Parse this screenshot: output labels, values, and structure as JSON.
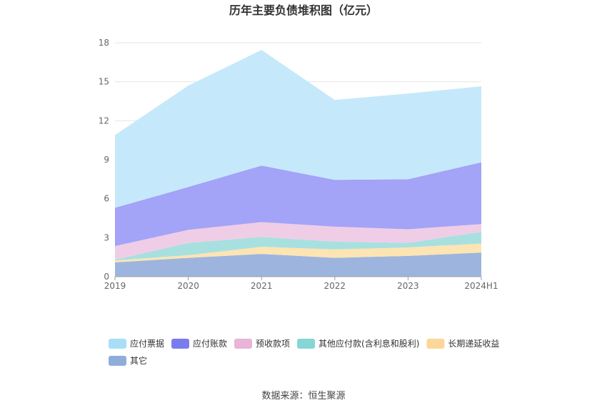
{
  "chart_data": {
    "type": "area",
    "stacked": true,
    "title": "历年主要负债堆积图（亿元）",
    "categories": [
      "2019",
      "2020",
      "2021",
      "2022",
      "2023",
      "2024H1"
    ],
    "ylim": [
      0,
      18
    ],
    "yticks": [
      "0",
      "3",
      "6",
      "9",
      "12",
      "15",
      "18"
    ],
    "grid": true,
    "legend_position": "bottom",
    "series": [
      {
        "name": "其它",
        "color": "#9db4de",
        "values": [
          1.1,
          1.45,
          1.75,
          1.45,
          1.6,
          1.85
        ]
      },
      {
        "name": "长期递延收益",
        "color": "#fde4b3",
        "values": [
          0.15,
          0.2,
          0.55,
          0.65,
          0.65,
          0.7
        ]
      },
      {
        "name": "其他应付款(含利息和股利)",
        "color": "#a8e0e0",
        "values": [
          0.05,
          0.95,
          0.75,
          0.6,
          0.35,
          0.9
        ]
      },
      {
        "name": "预收款项",
        "color": "#f0cde6",
        "values": [
          1.05,
          1.0,
          1.15,
          1.15,
          1.05,
          0.6
        ]
      },
      {
        "name": "应付账款",
        "color": "#a3a3f7",
        "values": [
          2.95,
          3.3,
          4.35,
          3.6,
          3.85,
          4.75
        ]
      },
      {
        "name": "应付票据",
        "color": "#c5e9fb",
        "values": [
          5.6,
          7.8,
          8.9,
          6.15,
          6.6,
          5.85
        ]
      }
    ],
    "legend_colors": {
      "应付票据": "#a8dff7",
      "应付账款": "#7b7bf0",
      "预收款项": "#e8b4d8",
      "其他应付款(含利息和股利)": "#86d6d6",
      "长期递延收益": "#fcd79a",
      "其它": "#8fadd9"
    },
    "legend_order": [
      "应付票据",
      "应付账款",
      "预收款项",
      "其他应付款(含利息和股利)",
      "长期递延收益",
      "其它"
    ]
  },
  "source_text": "数据来源：恒生聚源"
}
